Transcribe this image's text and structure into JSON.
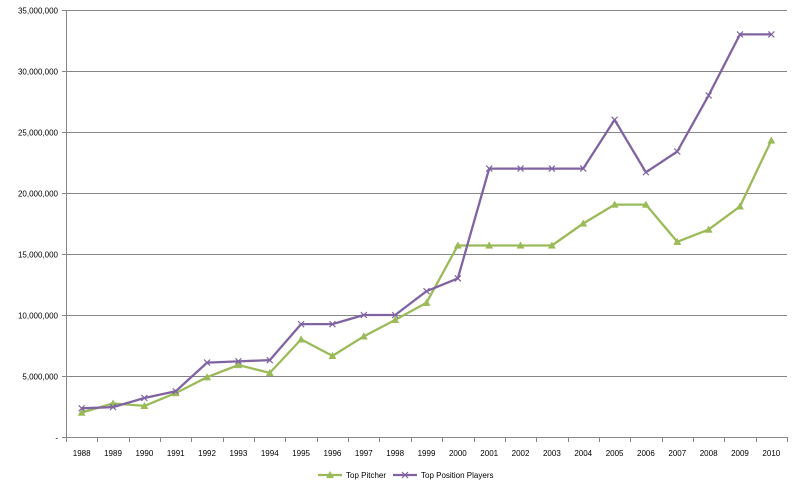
{
  "chart_data": {
    "type": "line",
    "title": "",
    "xlabel": "",
    "ylabel": "",
    "ylim": [
      0,
      35000000
    ],
    "y_ticks": [
      0,
      5000000,
      10000000,
      15000000,
      20000000,
      25000000,
      30000000,
      35000000
    ],
    "y_tick_labels": [
      "-",
      "5,000,000",
      "10,000,000",
      "15,000,000",
      "20,000,000",
      "25,000,000",
      "30,000,000",
      "35,000,000"
    ],
    "categories": [
      "1988",
      "1989",
      "1990",
      "1991",
      "1992",
      "1993",
      "1994",
      "1995",
      "1996",
      "1997",
      "1998",
      "1999",
      "2000",
      "2001",
      "2002",
      "2003",
      "2004",
      "2005",
      "2006",
      "2007",
      "2008",
      "2009",
      "2010"
    ],
    "grid": "horizontal",
    "legend_position": "bottom",
    "series": [
      {
        "name": "Top Pitcher",
        "color": "#9BBB59",
        "marker": "triangle",
        "values": [
          2000000,
          2750000,
          2550000,
          3600000,
          4900000,
          5900000,
          5250000,
          8000000,
          6650000,
          8250000,
          9600000,
          11000000,
          15700000,
          15700000,
          15700000,
          15700000,
          17500000,
          19050000,
          19050000,
          16000000,
          17000000,
          18900000,
          24300000
        ]
      },
      {
        "name": "Top Position Players",
        "color": "#8064A2",
        "marker": "x",
        "values": [
          2350000,
          2450000,
          3200000,
          3750000,
          6100000,
          6200000,
          6300000,
          9250000,
          9250000,
          10000000,
          10000000,
          11950000,
          13000000,
          22000000,
          22000000,
          22000000,
          22000000,
          26000000,
          21700000,
          23400000,
          28000000,
          33000000,
          33000000
        ]
      }
    ]
  }
}
